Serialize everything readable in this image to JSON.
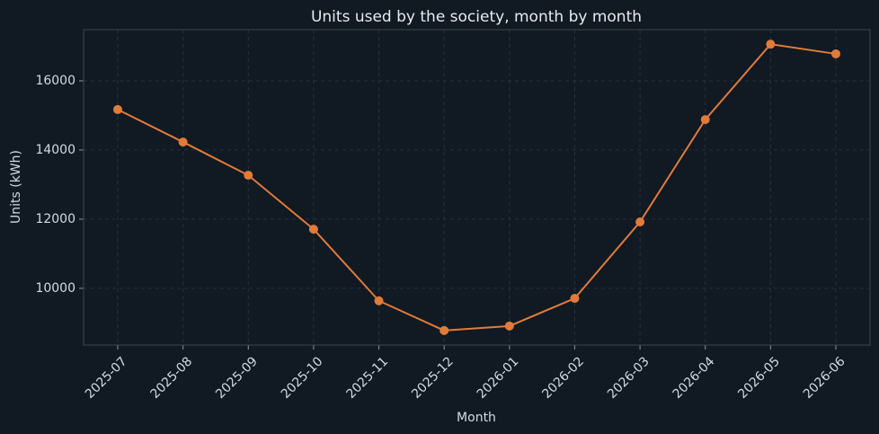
{
  "chart_data": {
    "type": "line",
    "title": "Units used by the society, month by month",
    "x_label": "Month",
    "y_label": "Units (kWh)",
    "categories": [
      "2025-07",
      "2025-08",
      "2025-09",
      "2025-10",
      "2025-11",
      "2025-12",
      "2026-01",
      "2026-02",
      "2026-03",
      "2026-04",
      "2026-05",
      "2026-06"
    ],
    "series": [
      {
        "name": "Units",
        "color": "#e07b3a",
        "values": [
          15170,
          14230,
          13270,
          11710,
          9640,
          8780,
          8910,
          9710,
          11920,
          14880,
          17060,
          16780
        ]
      }
    ],
    "ylim": [
      8360,
      17480
    ],
    "yticks": [
      10000,
      12000,
      14000,
      16000
    ],
    "grid": true
  }
}
